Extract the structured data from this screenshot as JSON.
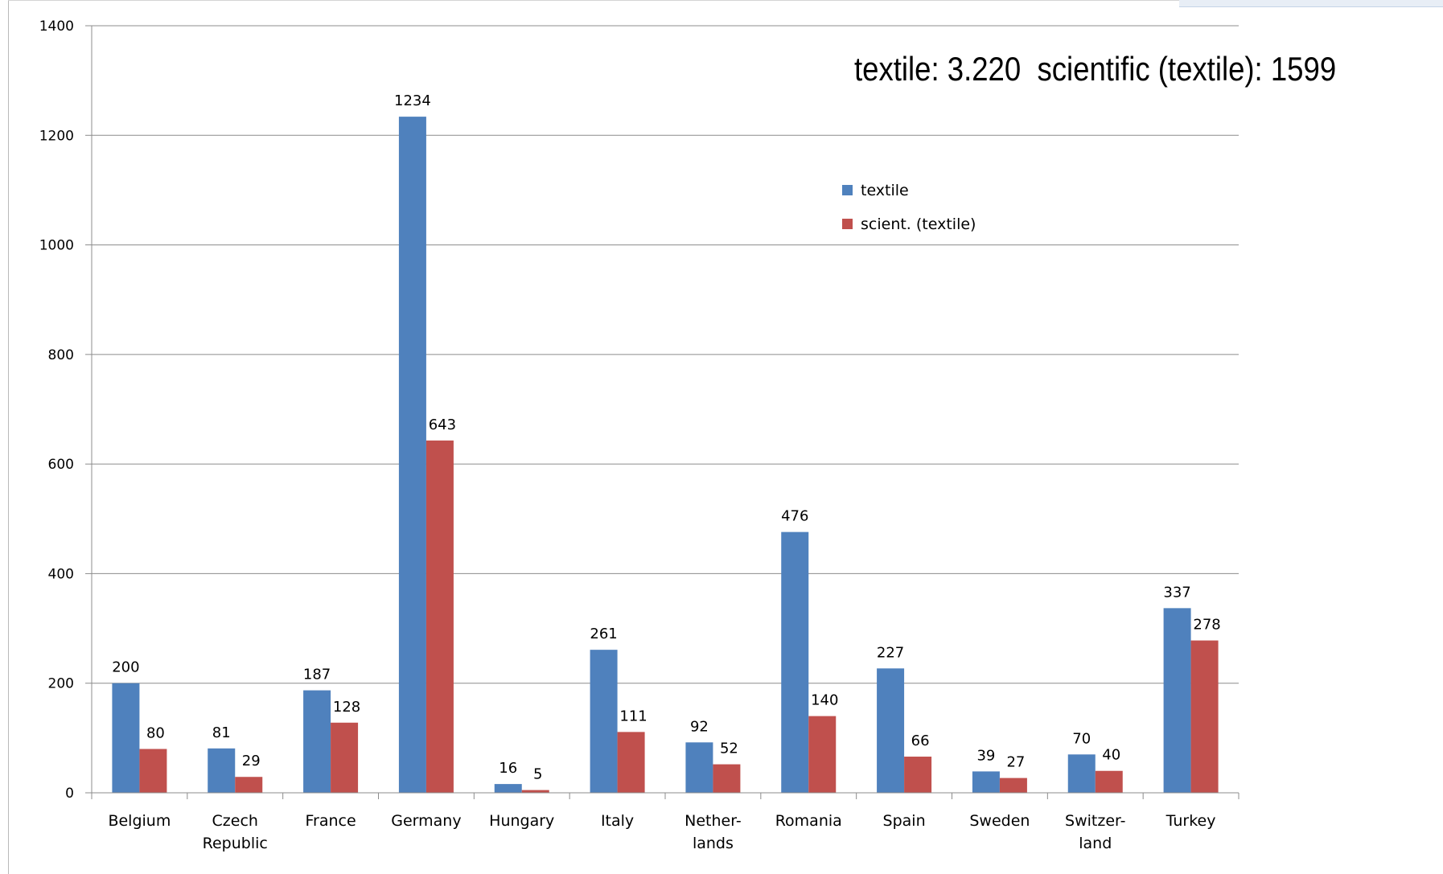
{
  "chart_data": {
    "type": "bar",
    "categories": [
      [
        "Belgium"
      ],
      [
        "Czech",
        "Republic"
      ],
      [
        "France"
      ],
      [
        "Germany"
      ],
      [
        "Hungary"
      ],
      [
        "Italy"
      ],
      [
        "Nether-",
        "lands"
      ],
      [
        "Romania"
      ],
      [
        "Spain"
      ],
      [
        "Sweden"
      ],
      [
        "Switzer-",
        "land"
      ],
      [
        "Turkey"
      ]
    ],
    "series": [
      {
        "name": "textile",
        "color": "#4f81bd",
        "values": [
          200,
          81,
          187,
          1234,
          16,
          261,
          92,
          476,
          227,
          39,
          70,
          337
        ]
      },
      {
        "name": "scient. (textile)",
        "color": "#c0504d",
        "values": [
          80,
          29,
          128,
          643,
          5,
          111,
          52,
          140,
          66,
          27,
          40,
          278
        ]
      }
    ],
    "ylim": [
      0,
      1400
    ],
    "yticks": [
      0,
      200,
      400,
      600,
      800,
      1000,
      1200,
      1400
    ],
    "grid": true,
    "legend": "top-right, inside plot",
    "annotation": "textile: 3.220  scientific (textile): 1599"
  }
}
